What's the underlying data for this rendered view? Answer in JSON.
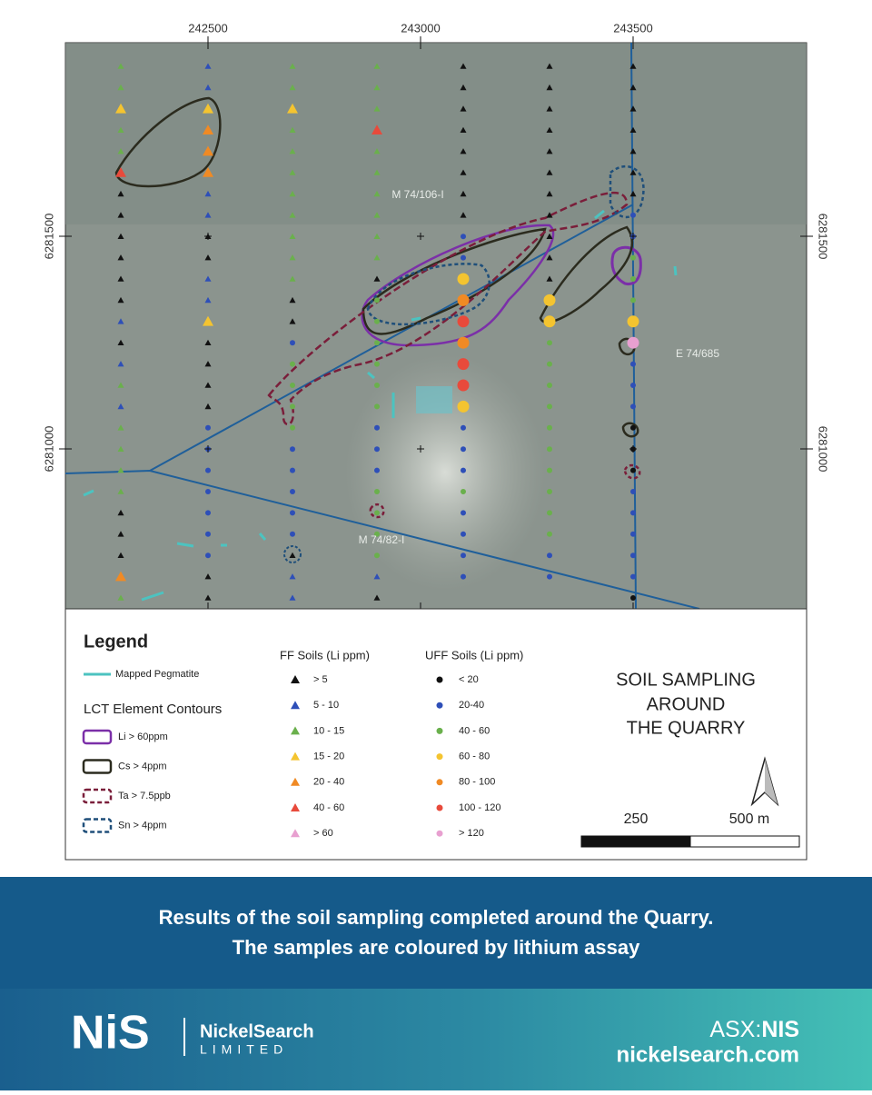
{
  "map": {
    "x_labels": [
      "242500",
      "243000",
      "243500"
    ],
    "y_labels": [
      "6281500",
      "6281000"
    ],
    "tenement_labels": [
      "M 74/106-I",
      "E 74/685",
      "M 74/82-I"
    ]
  },
  "legend": {
    "title": "Legend",
    "pegmatite": {
      "label": "Mapped Pegmatite",
      "color": "#4cc3c0"
    },
    "contours_title": "LCT Element Contours",
    "contours": [
      {
        "label": "Li > 60ppm",
        "color": "#7b2fa8",
        "dash": false
      },
      {
        "label": "Cs > 4ppm",
        "color": "#2b2b1e",
        "dash": false
      },
      {
        "label": "Ta > 7.5ppb",
        "color": "#7a1e3a",
        "dash": true
      },
      {
        "label": "Sn > 4ppm",
        "color": "#1f4f7a",
        "dash": true
      }
    ],
    "ff_title": "FF Soils (Li ppm)",
    "ff": [
      {
        "label": "> 5",
        "color": "#111111"
      },
      {
        "label": "5 - 10",
        "color": "#2e4fb8"
      },
      {
        "label": "10 - 15",
        "color": "#6ab04c"
      },
      {
        "label": "15 - 20",
        "color": "#f4c430"
      },
      {
        "label": "20 - 40",
        "color": "#f08a24"
      },
      {
        "label": "40 - 60",
        "color": "#e84a3b"
      },
      {
        "label": "> 60",
        "color": "#e8a0d0"
      }
    ],
    "uff_title": "UFF Soils (Li ppm)",
    "uff": [
      {
        "label": "< 20",
        "color": "#111111"
      },
      {
        "label": "20-40",
        "color": "#2e4fb8"
      },
      {
        "label": "40 - 60",
        "color": "#6ab04c"
      },
      {
        "label": "60 - 80",
        "color": "#f4c430"
      },
      {
        "label": "80 - 100",
        "color": "#f08a24"
      },
      {
        "label": "100 - 120",
        "color": "#e84a3b"
      },
      {
        "label": "> 120",
        "color": "#e8a0d0"
      }
    ],
    "map_title": [
      "SOIL SAMPLING",
      "AROUND",
      "THE QUARRY"
    ],
    "scale_labels": [
      "250",
      "500 m"
    ]
  },
  "caption": [
    "Results of the soil sampling completed around the Quarry.",
    "The samples are coloured by lithium assay"
  ],
  "footer": {
    "logo": "NiS",
    "company": "NickelSearch",
    "suffix": "LIMITED",
    "asx_prefix": "ASX:",
    "asx_code": "NIS",
    "website": "nickelsearch.com"
  }
}
